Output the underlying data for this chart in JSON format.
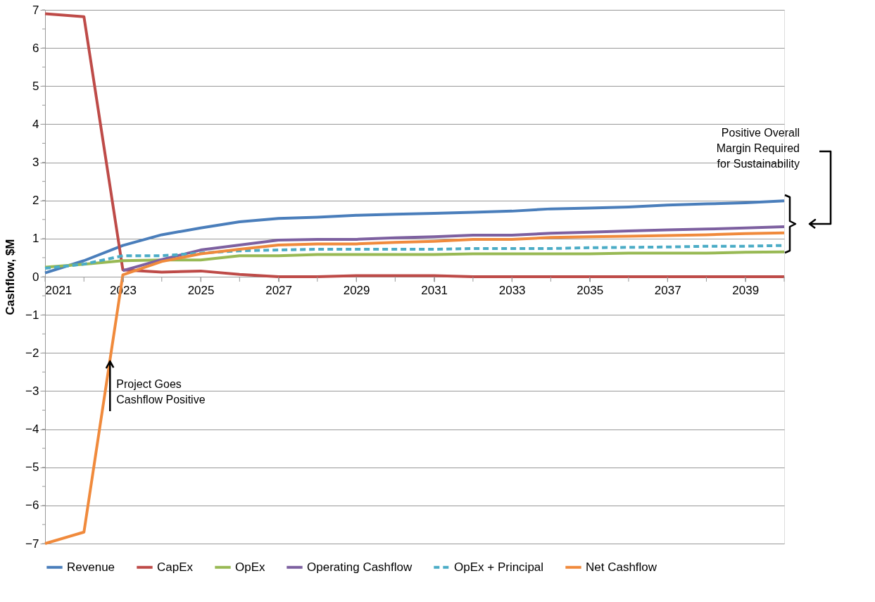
{
  "chart_data": {
    "type": "line",
    "ylabel": "Cashflow, $M",
    "x": [
      2021,
      2022,
      2023,
      2024,
      2025,
      2026,
      2027,
      2028,
      2029,
      2030,
      2031,
      2032,
      2033,
      2034,
      2035,
      2036,
      2037,
      2038,
      2039,
      2040
    ],
    "xlim": [
      2021,
      2040
    ],
    "xticks": [
      2021,
      2023,
      2025,
      2027,
      2029,
      2031,
      2033,
      2035,
      2037,
      2039
    ],
    "ylim": [
      -7,
      7
    ],
    "yticks": [
      -7,
      -6,
      -5,
      -4,
      -3,
      -2,
      -1,
      0,
      1,
      2,
      3,
      4,
      5,
      6,
      7
    ],
    "grid": "y",
    "legend": "bottom",
    "marker": "none",
    "series": [
      {
        "name": "Revenue",
        "color": "#4a7ebb",
        "line_style": "solid",
        "values": [
          0.1,
          0.42,
          0.82,
          1.1,
          1.28,
          1.44,
          1.53,
          1.56,
          1.61,
          1.64,
          1.66,
          1.69,
          1.72,
          1.78,
          1.8,
          1.83,
          1.88,
          1.91,
          1.94,
          1.99
        ]
      },
      {
        "name": "CapEx",
        "color": "#be4b48",
        "line_style": "solid",
        "values": [
          6.9,
          6.82,
          0.18,
          0.12,
          0.15,
          0.06,
          0.0,
          0.0,
          0.03,
          0.03,
          0.03,
          0.0,
          0.0,
          0.0,
          0.0,
          0.0,
          0.0,
          0.0,
          0.0,
          0.0
        ]
      },
      {
        "name": "OpEx",
        "color": "#98b954",
        "line_style": "solid",
        "values": [
          0.25,
          0.33,
          0.42,
          0.44,
          0.44,
          0.55,
          0.55,
          0.58,
          0.58,
          0.58,
          0.58,
          0.6,
          0.6,
          0.6,
          0.6,
          0.62,
          0.62,
          0.62,
          0.64,
          0.65
        ]
      },
      {
        "name": "Operating Cashflow",
        "color": "#7d60a0",
        "line_style": "solid",
        "values": [
          null,
          null,
          0.16,
          0.45,
          0.7,
          0.83,
          0.96,
          0.98,
          0.98,
          1.02,
          1.05,
          1.09,
          1.09,
          1.14,
          1.17,
          1.2,
          1.23,
          1.25,
          1.28,
          1.31
        ]
      },
      {
        "name": "OpEx + Principal",
        "color": "#4bacc6",
        "line_style": "dashed",
        "values": [
          0.22,
          0.33,
          0.55,
          0.55,
          0.62,
          0.68,
          0.7,
          0.72,
          0.72,
          0.72,
          0.72,
          0.74,
          0.74,
          0.74,
          0.76,
          0.77,
          0.78,
          0.8,
          0.8,
          0.82
        ]
      },
      {
        "name": "Net Cashflow",
        "color": "#f08a3c",
        "line_style": "solid",
        "values": [
          -7.0,
          -6.7,
          0.05,
          0.4,
          0.6,
          0.72,
          0.83,
          0.86,
          0.86,
          0.9,
          0.93,
          0.98,
          0.98,
          1.03,
          1.05,
          1.06,
          1.08,
          1.1,
          1.13,
          1.15
        ]
      }
    ],
    "annotations": [
      {
        "text": "Project Goes\nCashflow Positive",
        "x": 2022.67,
        "y": -2.2
      },
      "Positive Overall\nMargin Required\nfor  Sustainability"
    ]
  }
}
